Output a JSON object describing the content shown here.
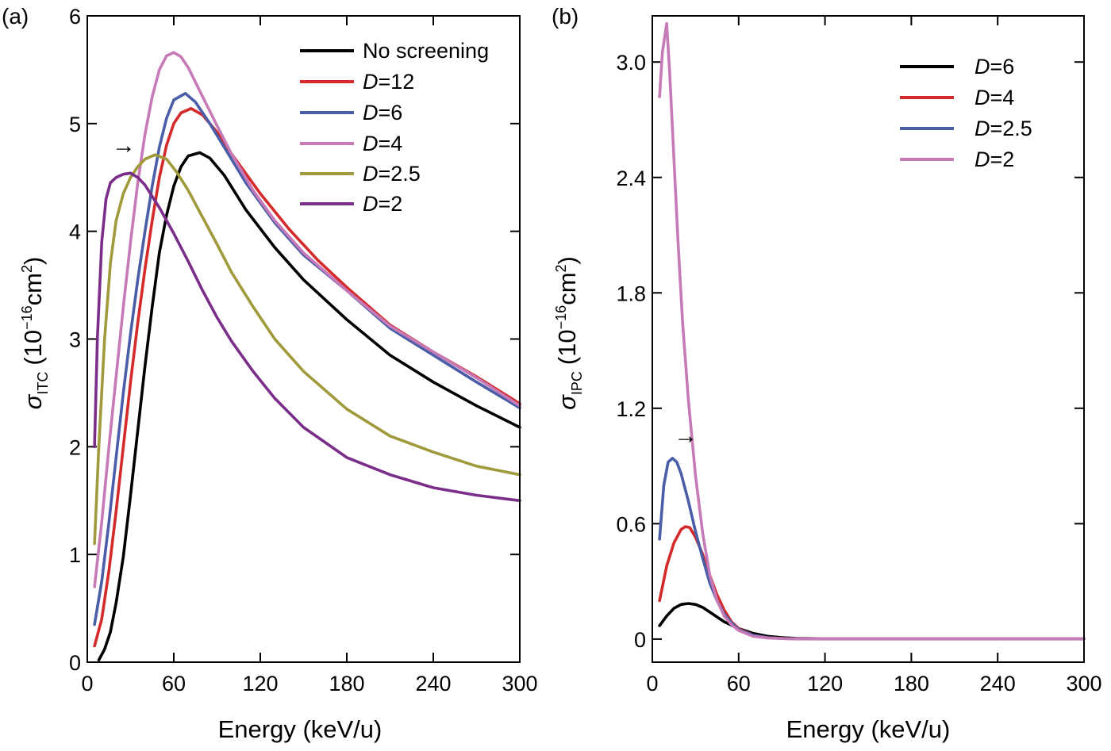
{
  "chart_data": [
    {
      "type": "line",
      "panel_label": "(a)",
      "xlabel": "Energy (keV/u)",
      "ylabel": {
        "symbol": "σ",
        "subscript": "ITC",
        "unit_open": "(10",
        "unit_exp": "−16",
        "unit_mid": "cm",
        "unit_exp2": "2",
        "unit_close": ")"
      },
      "xlim": [
        0,
        300
      ],
      "ylim": [
        0,
        6
      ],
      "xticks": [
        0,
        60,
        120,
        180,
        240,
        300
      ],
      "xtick_labels": [
        "0",
        "60",
        "120",
        "180",
        "240",
        "300"
      ],
      "yticks": [
        0,
        1,
        2,
        3,
        4,
        5,
        6
      ],
      "ytick_labels": [
        "0",
        "1",
        "2",
        "3",
        "4",
        "5",
        "6"
      ],
      "legend_placement": "top-right",
      "annotation": {
        "text": "→",
        "x": 17,
        "y": 4.8
      },
      "series": [
        {
          "name": "No screening",
          "prefix": "",
          "suffix": "No screening",
          "color": "#000000",
          "x": [
            8,
            12,
            16,
            20,
            25,
            30,
            35,
            40,
            45,
            50,
            55,
            60,
            65,
            70,
            78,
            85,
            95,
            110,
            130,
            150,
            180,
            210,
            240,
            270,
            300
          ],
          "y": [
            0.02,
            0.12,
            0.28,
            0.55,
            0.98,
            1.55,
            2.15,
            2.75,
            3.3,
            3.8,
            4.15,
            4.42,
            4.6,
            4.7,
            4.73,
            4.68,
            4.52,
            4.2,
            3.85,
            3.55,
            3.18,
            2.85,
            2.6,
            2.38,
            2.18
          ]
        },
        {
          "name": "D=12",
          "prefix": "D",
          "suffix": "=12",
          "color": "#d42a2a",
          "x": [
            5,
            10,
            15,
            20,
            25,
            30,
            35,
            40,
            45,
            50,
            55,
            60,
            65,
            72,
            80,
            90,
            100,
            120,
            140,
            160,
            180,
            210,
            240,
            270,
            300
          ],
          "y": [
            0.15,
            0.4,
            0.85,
            1.4,
            2.0,
            2.6,
            3.15,
            3.65,
            4.1,
            4.5,
            4.8,
            5.0,
            5.1,
            5.14,
            5.08,
            4.92,
            4.72,
            4.35,
            4.02,
            3.73,
            3.48,
            3.13,
            2.88,
            2.65,
            2.4
          ]
        },
        {
          "name": "D=6",
          "prefix": "D",
          "suffix": "=6",
          "color": "#4a5ea8",
          "x": [
            5,
            10,
            15,
            20,
            25,
            30,
            35,
            40,
            45,
            50,
            55,
            60,
            68,
            75,
            85,
            95,
            110,
            130,
            150,
            180,
            210,
            240,
            270,
            300
          ],
          "y": [
            0.35,
            0.75,
            1.3,
            1.9,
            2.5,
            3.05,
            3.55,
            4.0,
            4.42,
            4.78,
            5.05,
            5.22,
            5.28,
            5.2,
            5.0,
            4.78,
            4.45,
            4.08,
            3.78,
            3.45,
            3.1,
            2.85,
            2.6,
            2.36
          ]
        },
        {
          "name": "D=4",
          "prefix": "D",
          "suffix": "=4",
          "color": "#c77ab8",
          "x": [
            5,
            10,
            15,
            20,
            25,
            30,
            35,
            40,
            45,
            50,
            55,
            60,
            65,
            70,
            80,
            90,
            100,
            115,
            130,
            150,
            180,
            210,
            240,
            270,
            300
          ],
          "y": [
            0.7,
            1.3,
            2.0,
            2.65,
            3.3,
            3.9,
            4.45,
            4.9,
            5.25,
            5.5,
            5.63,
            5.66,
            5.62,
            5.52,
            5.25,
            4.98,
            4.72,
            4.38,
            4.1,
            3.8,
            3.45,
            3.12,
            2.88,
            2.64,
            2.38
          ]
        },
        {
          "name": "D=2.5",
          "prefix": "D",
          "suffix": "=2.5",
          "color": "#a09a3c",
          "x": [
            5,
            8,
            12,
            16,
            20,
            25,
            30,
            35,
            40,
            47,
            55,
            62,
            70,
            80,
            90,
            100,
            115,
            130,
            150,
            180,
            210,
            240,
            270,
            300
          ],
          "y": [
            1.1,
            2.0,
            3.0,
            3.7,
            4.1,
            4.35,
            4.5,
            4.6,
            4.67,
            4.71,
            4.67,
            4.55,
            4.38,
            4.13,
            3.88,
            3.62,
            3.3,
            3.0,
            2.7,
            2.35,
            2.1,
            1.95,
            1.82,
            1.74
          ]
        },
        {
          "name": "D=2",
          "prefix": "D",
          "suffix": "=2",
          "color": "#7a2e8a",
          "x": [
            5,
            7,
            10,
            13,
            16,
            20,
            25,
            30,
            35,
            40,
            50,
            60,
            70,
            80,
            90,
            100,
            115,
            130,
            150,
            180,
            210,
            240,
            270,
            300
          ],
          "y": [
            2.0,
            3.0,
            3.9,
            4.3,
            4.45,
            4.5,
            4.53,
            4.54,
            4.5,
            4.43,
            4.22,
            3.98,
            3.72,
            3.45,
            3.2,
            2.98,
            2.7,
            2.45,
            2.18,
            1.9,
            1.74,
            1.62,
            1.55,
            1.5
          ]
        }
      ]
    },
    {
      "type": "line",
      "panel_label": "(b)",
      "xlabel": "Energy (keV/u)",
      "ylabel": {
        "symbol": "σ",
        "subscript": "IPC",
        "unit_open": "(10",
        "unit_exp": "−16",
        "unit_mid": "cm",
        "unit_exp2": "2",
        "unit_close": ")"
      },
      "xlim": [
        0,
        300
      ],
      "ylim": [
        -0.12,
        3.24
      ],
      "xticks": [
        0,
        60,
        120,
        180,
        240,
        300
      ],
      "xtick_labels": [
        "0",
        "60",
        "120",
        "180",
        "240",
        "300"
      ],
      "yticks": [
        0,
        0.6,
        1.2,
        1.8,
        2.4,
        3.0
      ],
      "ytick_labels": [
        "0",
        "0.6",
        "1.2",
        "1.8",
        "2.4",
        "3.0"
      ],
      "legend_placement": "top-right",
      "annotation": {
        "text": "→",
        "x": 15,
        "y": 1.06
      },
      "series": [
        {
          "name": "D=6",
          "prefix": "D",
          "suffix": "=6",
          "color": "#000000",
          "x": [
            5,
            10,
            15,
            20,
            25,
            30,
            35,
            40,
            50,
            60,
            70,
            80,
            90,
            100,
            120,
            150,
            200,
            250,
            300
          ],
          "y": [
            0.07,
            0.12,
            0.16,
            0.18,
            0.185,
            0.18,
            0.165,
            0.14,
            0.09,
            0.055,
            0.03,
            0.015,
            0.008,
            0.004,
            0.002,
            0.002,
            0.002,
            0.002,
            0.002
          ]
        },
        {
          "name": "D=4",
          "prefix": "D",
          "suffix": "=4",
          "color": "#d42a2a",
          "x": [
            5,
            10,
            15,
            20,
            23,
            26,
            30,
            35,
            40,
            45,
            50,
            55,
            60,
            70,
            80,
            90,
            100,
            120,
            150,
            200,
            250,
            300
          ],
          "y": [
            0.2,
            0.38,
            0.5,
            0.57,
            0.585,
            0.58,
            0.53,
            0.44,
            0.33,
            0.23,
            0.15,
            0.09,
            0.055,
            0.02,
            0.008,
            0.003,
            0.002,
            0.002,
            0.002,
            0.002,
            0.002,
            0.002
          ]
        },
        {
          "name": "D=2.5",
          "prefix": "D",
          "suffix": "=2.5",
          "color": "#4a5ea8",
          "x": [
            5,
            8,
            11,
            14,
            17,
            20,
            25,
            30,
            35,
            40,
            45,
            50,
            55,
            60,
            70,
            80,
            90,
            100,
            120,
            150,
            200,
            250,
            300
          ],
          "y": [
            0.52,
            0.8,
            0.92,
            0.94,
            0.92,
            0.86,
            0.72,
            0.56,
            0.42,
            0.29,
            0.2,
            0.13,
            0.085,
            0.05,
            0.02,
            0.008,
            0.003,
            0.002,
            0.002,
            0.002,
            0.002,
            0.002,
            0.002
          ]
        },
        {
          "name": "D=2",
          "prefix": "D",
          "suffix": "=2",
          "color": "#c77ab8",
          "x": [
            5,
            7,
            10,
            12,
            15,
            18,
            21,
            25,
            30,
            35,
            40,
            45,
            50,
            55,
            60,
            70,
            80,
            90,
            100,
            120,
            150,
            200,
            250,
            300
          ],
          "y": [
            2.82,
            3.05,
            3.2,
            2.95,
            2.5,
            2.05,
            1.65,
            1.25,
            0.85,
            0.55,
            0.33,
            0.2,
            0.12,
            0.075,
            0.045,
            0.015,
            0.006,
            0.003,
            0.002,
            0.002,
            0.002,
            0.002,
            0.002,
            0.002
          ]
        }
      ]
    }
  ]
}
